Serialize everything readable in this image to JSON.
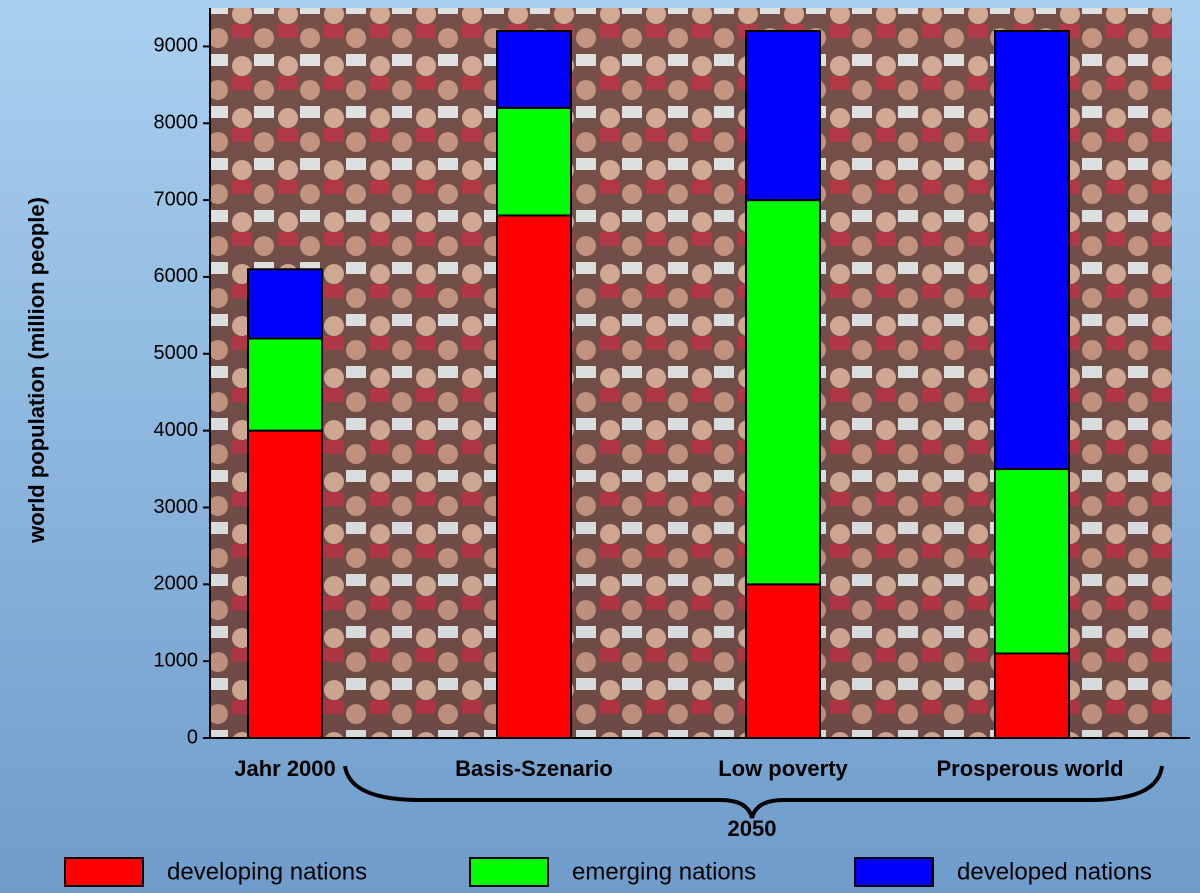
{
  "chart_data": {
    "type": "bar",
    "stacked": true,
    "y_label": "world population (million people)",
    "categories": [
      "Jahr 2000",
      "Basis-Szenario",
      "Low poverty",
      "Prosperous world"
    ],
    "annotation": "2050",
    "series": [
      {
        "name": "developing nations",
        "color": "#ff0000",
        "values": [
          4000,
          6800,
          2000,
          1100
        ]
      },
      {
        "name": "emerging nations",
        "color": "#00ff00",
        "values": [
          1200,
          1400,
          5000,
          2400
        ]
      },
      {
        "name": "developed nations",
        "color": "#0000ff",
        "values": [
          900,
          1000,
          2200,
          5700
        ]
      }
    ],
    "ylim": [
      0,
      9500
    ],
    "yticks": [
      0,
      1000,
      2000,
      3000,
      4000,
      5000,
      6000,
      7000,
      8000,
      9000
    ]
  }
}
